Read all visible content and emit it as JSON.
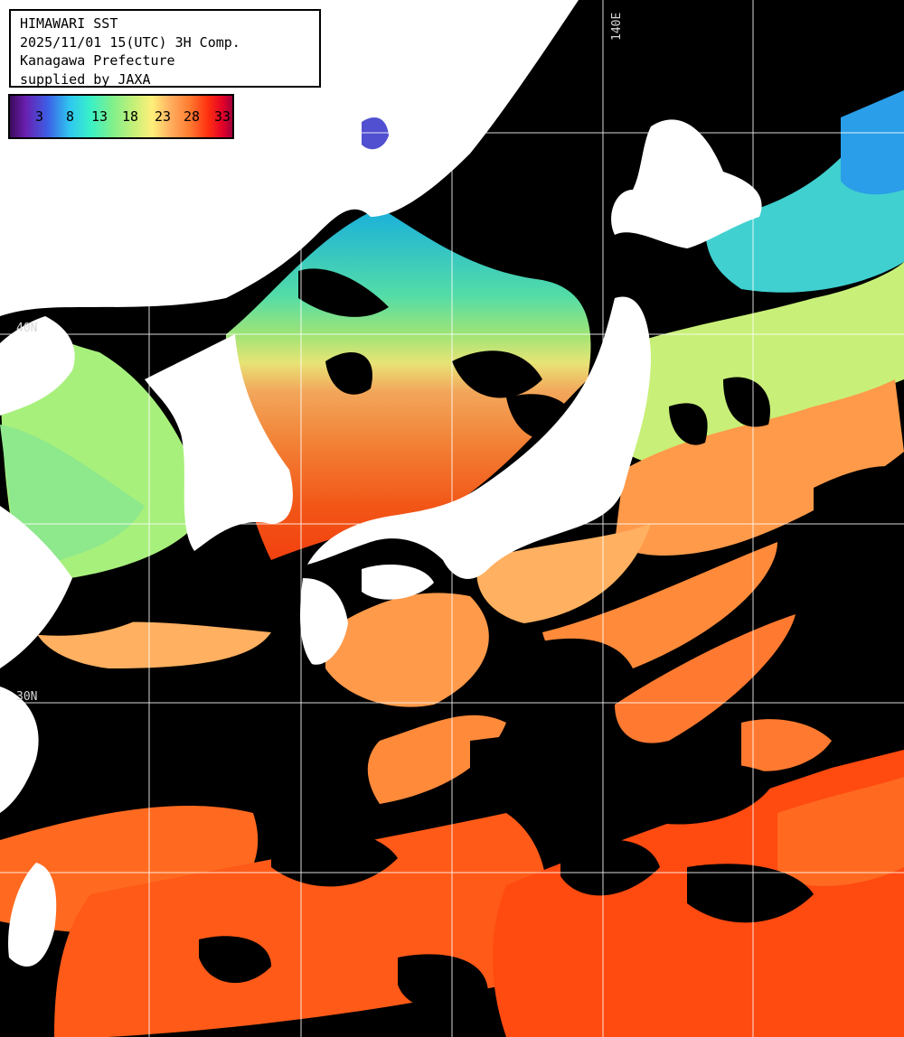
{
  "title_lines": {
    "line1": "HIMAWARI SST",
    "line2": "2025/11/01 15(UTC) 3H Comp.",
    "line3": "Kanagawa Prefecture",
    "line4": "supplied by JAXA"
  },
  "color_scale": {
    "ticks": [
      "3",
      "8",
      "13",
      "18",
      "23",
      "28",
      "33"
    ]
  },
  "grid_labels": {
    "lon_140": "140E",
    "lat_40": "40N",
    "lat_30": "30N"
  },
  "colors": {
    "land": "#ffffff",
    "cloud_mask": "#000000",
    "grid": "#ffffff",
    "sst_cold": "#2fc8f0",
    "sst_cool": "#7ff08c",
    "sst_mild": "#fff07a",
    "sst_warm": "#ff8a3a",
    "sst_hot": "#ff4a10"
  }
}
